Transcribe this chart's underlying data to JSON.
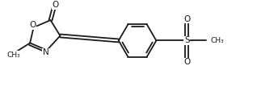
{
  "bg_color": "#ffffff",
  "line_color": "#1a1a1a",
  "lw": 1.3,
  "fs": 7.5,
  "xlim": [
    0,
    10
  ],
  "ylim": [
    0,
    4
  ],
  "figsize": [
    3.18,
    1.28
  ],
  "dpi": 100
}
